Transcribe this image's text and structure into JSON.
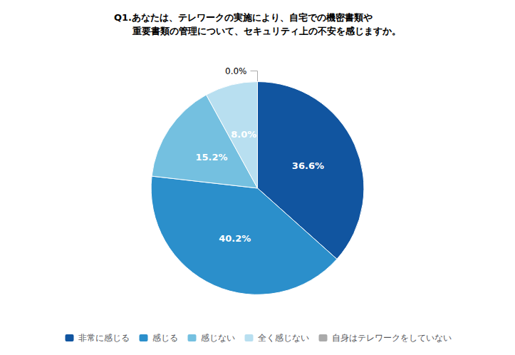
{
  "chart_data": {
    "type": "pie",
    "title": "Q1.あなたは、テレワークの実施により、自宅での機密書類や\n　　重要書類の管理について、セキュリティ上の不安を感じますか。",
    "categories": [
      "非常に感じる",
      "感じる",
      "感じない",
      "全く感じない",
      "自身はテレワークをしていない"
    ],
    "values": [
      36.6,
      40.2,
      15.2,
      8.0,
      0.0
    ],
    "value_labels": [
      "36.6%",
      "40.2%",
      "15.2%",
      "8.0%",
      "0.0%"
    ],
    "colors": [
      "#1155a0",
      "#2b8fcb",
      "#74c0e0",
      "#b8dff0",
      "#aaaaaa"
    ],
    "data_labels": true,
    "legend": "bottom"
  }
}
